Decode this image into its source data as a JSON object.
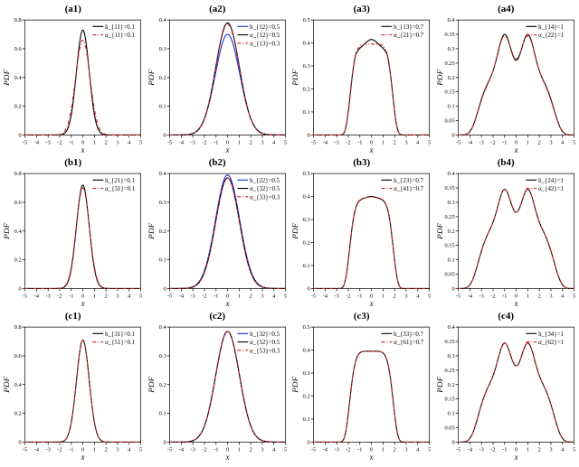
{
  "figure": {
    "background_color": "#ffffff",
    "rows": 3,
    "cols": 4,
    "font_family": "Times New Roman",
    "title_fontsize": 11,
    "label_fontsize": 9,
    "tick_fontsize": 6.5,
    "legend_fontsize": 7,
    "xlabel": "x",
    "ylabel": "PDF",
    "xlim": [
      -5,
      5
    ],
    "xticks": [
      -5,
      -4,
      -3,
      -2,
      -1,
      0,
      1,
      2,
      3,
      4,
      5
    ],
    "axis_color": "#000000",
    "line_width": 1.1,
    "colors": {
      "series_black": "#000000",
      "series_red": "#d62020",
      "series_blue": "#1030e0"
    },
    "dash": {
      "solid": "",
      "dashdot": "4 2 1 2"
    },
    "panels": [
      {
        "id": "a1",
        "title": "(a1)",
        "ylim": [
          0,
          0.8
        ],
        "ytick_step": 0.2,
        "legend": [
          {
            "label": "h_{11}=0.1",
            "color": "series_black",
            "dash": "solid"
          },
          {
            "label": "α_{11}=0.1",
            "color": "series_red",
            "dash": "dashdot"
          }
        ],
        "series": [
          {
            "color": "series_black",
            "dash": "solid",
            "type": "narrow_gauss",
            "mu": 0,
            "sigma": 0.55,
            "amp": 0.73
          },
          {
            "color": "series_red",
            "dash": "dashdot",
            "type": "narrow_gauss",
            "mu": 0,
            "sigma": 0.62,
            "amp": 0.66
          }
        ]
      },
      {
        "id": "a2",
        "title": "(a2)",
        "ylim": [
          0,
          0.4
        ],
        "ytick_step": 0.1,
        "legend": [
          {
            "label": "h_{12}=0.5",
            "color": "series_blue",
            "dash": "solid"
          },
          {
            "label": "α_{12}=0.5",
            "color": "series_black",
            "dash": "solid"
          },
          {
            "label": "α_{13}=0.3",
            "color": "series_red",
            "dash": "dashdot"
          }
        ],
        "series": [
          {
            "color": "series_blue",
            "dash": "solid",
            "type": "gauss",
            "mu": 0,
            "sigma": 1.05,
            "amp": 0.35
          },
          {
            "color": "series_black",
            "dash": "solid",
            "type": "gauss",
            "mu": 0,
            "sigma": 1.02,
            "amp": 0.39
          },
          {
            "color": "series_red",
            "dash": "dashdot",
            "type": "gauss",
            "mu": 0,
            "sigma": 1.02,
            "amp": 0.385
          }
        ]
      },
      {
        "id": "a3",
        "title": "(a3)",
        "ylim": [
          0,
          0.5
        ],
        "ytick_step": 0.1,
        "legend": [
          {
            "label": "h_{13}=0.7",
            "color": "series_black",
            "dash": "solid"
          },
          {
            "label": "α_{21}=0.7",
            "color": "series_red",
            "dash": "dashdot"
          }
        ],
        "series": [
          {
            "color": "series_black",
            "dash": "solid",
            "type": "flattop",
            "width": 1.3,
            "edge": 0.6,
            "amp": 0.4,
            "ripple": 0.015
          },
          {
            "color": "series_red",
            "dash": "dashdot",
            "type": "flattop",
            "width": 1.3,
            "edge": 0.6,
            "amp": 0.395,
            "ripple": 0.0
          }
        ]
      },
      {
        "id": "a4",
        "title": "(a4)",
        "ylim": [
          0,
          0.4
        ],
        "ytick_step": 0.05,
        "legend": [
          {
            "label": "h_{14}=1",
            "color": "series_black",
            "dash": "solid"
          },
          {
            "label": "α_{22}=1",
            "color": "series_red",
            "dash": "dashdot"
          }
        ],
        "series": [
          {
            "color": "series_black",
            "dash": "solid",
            "type": "bimodal",
            "sep": 1.0,
            "sigma": 0.55,
            "amp": 0.35,
            "dip": 0.26
          },
          {
            "color": "series_red",
            "dash": "dashdot",
            "type": "bimodal",
            "sep": 1.0,
            "sigma": 0.58,
            "amp": 0.345,
            "dip": 0.265
          }
        ]
      },
      {
        "id": "b1",
        "title": "(b1)",
        "ylim": [
          0,
          0.8
        ],
        "ytick_step": 0.2,
        "legend": [
          {
            "label": "h_{21}=0.1",
            "color": "series_black",
            "dash": "solid"
          },
          {
            "label": "α_{31}=0.1",
            "color": "series_red",
            "dash": "dashdot"
          }
        ],
        "series": [
          {
            "color": "series_black",
            "dash": "solid",
            "type": "narrow_gauss",
            "mu": 0,
            "sigma": 0.55,
            "amp": 0.72
          },
          {
            "color": "series_red",
            "dash": "dashdot",
            "type": "narrow_gauss",
            "mu": 0,
            "sigma": 0.57,
            "amp": 0.7
          }
        ]
      },
      {
        "id": "b2",
        "title": "(b2)",
        "ylim": [
          0,
          0.4
        ],
        "ytick_step": 0.1,
        "legend": [
          {
            "label": "h_{22}=0.5",
            "color": "series_blue",
            "dash": "solid"
          },
          {
            "label": "α_{32}=0.5",
            "color": "series_black",
            "dash": "solid"
          },
          {
            "label": "α_{33}=0.3",
            "color": "series_red",
            "dash": "dashdot"
          }
        ],
        "series": [
          {
            "color": "series_blue",
            "dash": "solid",
            "type": "gauss",
            "mu": 0,
            "sigma": 1.04,
            "amp": 0.395
          },
          {
            "color": "series_black",
            "dash": "solid",
            "type": "gauss",
            "mu": 0,
            "sigma": 1.02,
            "amp": 0.385
          },
          {
            "color": "series_red",
            "dash": "dashdot",
            "type": "gauss",
            "mu": 0,
            "sigma": 1.02,
            "amp": 0.385
          }
        ]
      },
      {
        "id": "b3",
        "title": "(b3)",
        "ylim": [
          0,
          0.5
        ],
        "ytick_step": 0.1,
        "legend": [
          {
            "label": "h_{23}=0.7",
            "color": "series_black",
            "dash": "solid"
          },
          {
            "label": "α_{41}=0.7",
            "color": "series_red",
            "dash": "dashdot"
          }
        ],
        "series": [
          {
            "color": "series_black",
            "dash": "solid",
            "type": "flattop",
            "width": 1.4,
            "edge": 0.55,
            "amp": 0.395,
            "ripple": 0.005
          },
          {
            "color": "series_red",
            "dash": "dashdot",
            "type": "flattop",
            "width": 1.4,
            "edge": 0.55,
            "amp": 0.395,
            "ripple": 0.003
          }
        ]
      },
      {
        "id": "b4",
        "title": "(b4)",
        "ylim": [
          0,
          0.4
        ],
        "ytick_step": 0.05,
        "legend": [
          {
            "label": "h_{24}=1",
            "color": "series_black",
            "dash": "solid"
          },
          {
            "label": "α_{42}=1",
            "color": "series_red",
            "dash": "dashdot"
          }
        ],
        "series": [
          {
            "color": "series_black",
            "dash": "solid",
            "type": "bimodal",
            "sep": 1.0,
            "sigma": 0.55,
            "amp": 0.345,
            "dip": 0.265
          },
          {
            "color": "series_red",
            "dash": "dashdot",
            "type": "bimodal",
            "sep": 1.0,
            "sigma": 0.55,
            "amp": 0.345,
            "dip": 0.265
          }
        ]
      },
      {
        "id": "c1",
        "title": "(c1)",
        "ylim": [
          0,
          0.8
        ],
        "ytick_step": 0.2,
        "legend": [
          {
            "label": "h_{31}=0.1",
            "color": "series_black",
            "dash": "solid"
          },
          {
            "label": "α_{51}=0.1",
            "color": "series_red",
            "dash": "dashdot"
          }
        ],
        "series": [
          {
            "color": "series_black",
            "dash": "solid",
            "type": "narrow_gauss",
            "mu": 0,
            "sigma": 0.55,
            "amp": 0.71
          },
          {
            "color": "series_red",
            "dash": "dashdot",
            "type": "narrow_gauss",
            "mu": 0,
            "sigma": 0.55,
            "amp": 0.71
          }
        ]
      },
      {
        "id": "c2",
        "title": "(c2)",
        "ylim": [
          0,
          0.4
        ],
        "ytick_step": 0.1,
        "legend": [
          {
            "label": "h_{32}=0.5",
            "color": "series_blue",
            "dash": "solid"
          },
          {
            "label": "α_{52}=0.5",
            "color": "series_black",
            "dash": "solid"
          },
          {
            "label": "α_{53}=0.3",
            "color": "series_red",
            "dash": "dashdot"
          }
        ],
        "series": [
          {
            "color": "series_blue",
            "dash": "solid",
            "type": "gauss",
            "mu": 0,
            "sigma": 1.02,
            "amp": 0.385
          },
          {
            "color": "series_black",
            "dash": "solid",
            "type": "gauss",
            "mu": 0,
            "sigma": 1.02,
            "amp": 0.385
          },
          {
            "color": "series_red",
            "dash": "dashdot",
            "type": "gauss",
            "mu": 0,
            "sigma": 1.02,
            "amp": 0.385
          }
        ]
      },
      {
        "id": "c3",
        "title": "(c3)",
        "ylim": [
          0,
          0.5
        ],
        "ytick_step": 0.1,
        "legend": [
          {
            "label": "h_{33}=0.7",
            "color": "series_black",
            "dash": "solid"
          },
          {
            "label": "α_{61}=0.7",
            "color": "series_red",
            "dash": "dashdot"
          }
        ],
        "series": [
          {
            "color": "series_black",
            "dash": "solid",
            "type": "flattop",
            "width": 1.4,
            "edge": 0.55,
            "amp": 0.395,
            "ripple": 0.0
          },
          {
            "color": "series_red",
            "dash": "dashdot",
            "type": "flattop",
            "width": 1.4,
            "edge": 0.55,
            "amp": 0.395,
            "ripple": 0.0
          }
        ]
      },
      {
        "id": "c4",
        "title": "(c4)",
        "ylim": [
          0,
          0.4
        ],
        "ytick_step": 0.05,
        "legend": [
          {
            "label": "h_{34}=1",
            "color": "series_black",
            "dash": "solid"
          },
          {
            "label": "α_{62}=1",
            "color": "series_red",
            "dash": "dashdot"
          }
        ],
        "series": [
          {
            "color": "series_black",
            "dash": "solid",
            "type": "bimodal",
            "sep": 1.0,
            "sigma": 0.55,
            "amp": 0.345,
            "dip": 0.265
          },
          {
            "color": "series_red",
            "dash": "dashdot",
            "type": "bimodal",
            "sep": 1.0,
            "sigma": 0.55,
            "amp": 0.345,
            "dip": 0.265
          }
        ]
      }
    ]
  }
}
